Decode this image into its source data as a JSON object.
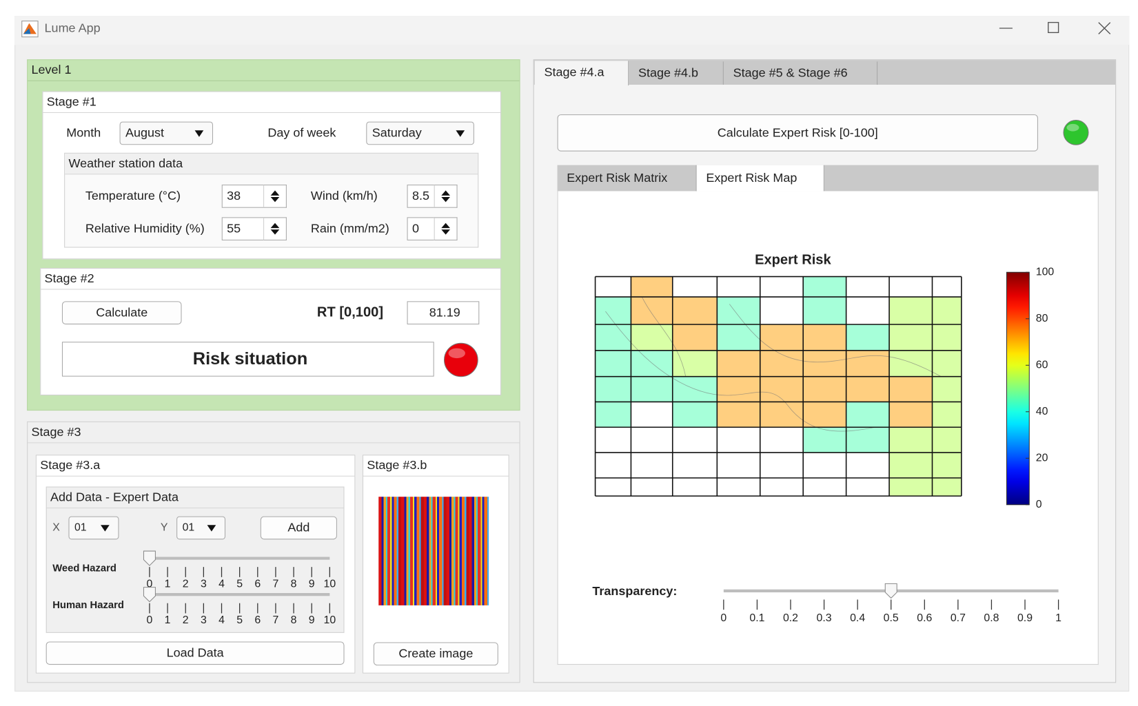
{
  "window": {
    "title": "Lume App"
  },
  "level1": {
    "title": "Level 1",
    "stage1": {
      "title": "Stage #1",
      "month_label": "Month",
      "month": "August",
      "day_label": "Day of week",
      "day": "Saturday",
      "weather": {
        "title": "Weather station data",
        "temperature_label": "Temperature (°C)",
        "temperature": 38,
        "wind_label": "Wind (km/h)",
        "wind": 8.5,
        "humidity_label": "Relative Humidity (%)",
        "humidity": 55,
        "rain_label": "Rain (mm/m2)",
        "rain": 0
      }
    },
    "stage2": {
      "title": "Stage #2",
      "calculate_button": "Calculate",
      "rt_label": "RT [0,100]",
      "rt": 81.19,
      "status": "Risk situation",
      "status_color": "#e8000b"
    }
  },
  "stage3": {
    "title": "Stage #3",
    "stage3a": {
      "title": "Stage #3.a",
      "add_data": {
        "title": "Add Data - Expert Data",
        "x_label": "X",
        "x": "01",
        "y_label": "Y",
        "y": "01",
        "add_button": "Add",
        "weed_hazard": {
          "label": "Weed Hazard",
          "value": 0,
          "lim": [
            0,
            10
          ],
          "ticks": [
            0,
            1,
            2,
            3,
            4,
            5,
            6,
            7,
            8,
            9,
            10
          ]
        },
        "human_hazard": {
          "label": "Human Hazard",
          "value": 0,
          "lim": [
            0,
            10
          ],
          "ticks": [
            0,
            1,
            2,
            3,
            4,
            5,
            6,
            7,
            8,
            9,
            10
          ]
        }
      },
      "load_button": "Load Data"
    },
    "stage3b": {
      "title": "Stage #3.b",
      "create_button": "Create image"
    }
  },
  "stage4": {
    "tabs": [
      "Stage #4.a",
      "Stage #4.b",
      "Stage #5 & Stage #6"
    ],
    "active_tab": 0,
    "calculate_button": "Calculate Expert Risk [0-100]",
    "status_color": "#2ec52e",
    "subtabs": [
      "Expert Risk Matrix",
      "Expert Risk Map"
    ],
    "active_subtab": 1,
    "map": {
      "title": "Expert Risk",
      "colormap": "jet",
      "clim": [
        0,
        100
      ],
      "cticks": [
        0,
        20,
        40,
        60,
        80,
        100
      ],
      "cells": [
        [
          null,
          72,
          null,
          null,
          null,
          45,
          null,
          null,
          null
        ],
        [
          45,
          72,
          72,
          45,
          null,
          45,
          null,
          55,
          55
        ],
        [
          45,
          55,
          72,
          45,
          72,
          72,
          45,
          55,
          55
        ],
        [
          45,
          45,
          55,
          72,
          72,
          72,
          72,
          55,
          55
        ],
        [
          45,
          45,
          45,
          72,
          72,
          72,
          72,
          72,
          55
        ],
        [
          45,
          null,
          45,
          72,
          72,
          72,
          45,
          72,
          55
        ],
        [
          null,
          null,
          null,
          null,
          null,
          45,
          45,
          55,
          55
        ],
        [
          null,
          null,
          null,
          null,
          null,
          null,
          null,
          55,
          55
        ],
        [
          null,
          null,
          null,
          null,
          null,
          null,
          null,
          55,
          55
        ]
      ]
    },
    "transparency": {
      "label": "Transparency:",
      "value": 0.5,
      "lim": [
        0,
        1
      ],
      "ticks": [
        0,
        0.1,
        0.2,
        0.3,
        0.4,
        0.5,
        0.6,
        0.7,
        0.8,
        0.9,
        1
      ]
    }
  }
}
